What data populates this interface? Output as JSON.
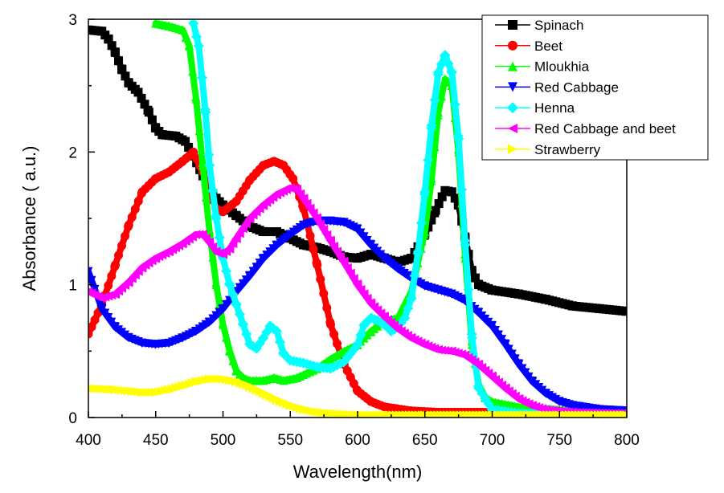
{
  "chart_data": {
    "type": "line",
    "title": "",
    "xlabel": "Wavelength(nm)",
    "ylabel": "Absorbance ( a.u.)",
    "xlim": [
      400,
      800
    ],
    "ylim": [
      0,
      3
    ],
    "xticks": [
      400,
      450,
      500,
      550,
      600,
      650,
      700,
      750,
      800
    ],
    "yticks": [
      0,
      1,
      2,
      3
    ],
    "grid": false,
    "legend_position": "top-right",
    "series": [
      {
        "name": "Spinach",
        "color": "#000000",
        "marker": "square",
        "points": [
          [
            400,
            2.92
          ],
          [
            410,
            2.91
          ],
          [
            415,
            2.85
          ],
          [
            420,
            2.75
          ],
          [
            425,
            2.62
          ],
          [
            430,
            2.52
          ],
          [
            437,
            2.45
          ],
          [
            445,
            2.3
          ],
          [
            450,
            2.18
          ],
          [
            455,
            2.13
          ],
          [
            465,
            2.12
          ],
          [
            472,
            2.08
          ],
          [
            478,
            1.97
          ],
          [
            485,
            1.82
          ],
          [
            490,
            1.72
          ],
          [
            495,
            1.65
          ],
          [
            500,
            1.6
          ],
          [
            510,
            1.52
          ],
          [
            520,
            1.44
          ],
          [
            530,
            1.4
          ],
          [
            540,
            1.4
          ],
          [
            550,
            1.35
          ],
          [
            560,
            1.3
          ],
          [
            570,
            1.28
          ],
          [
            580,
            1.25
          ],
          [
            590,
            1.21
          ],
          [
            600,
            1.2
          ],
          [
            610,
            1.23
          ],
          [
            620,
            1.2
          ],
          [
            630,
            1.17
          ],
          [
            640,
            1.2
          ],
          [
            650,
            1.38
          ],
          [
            658,
            1.56
          ],
          [
            665,
            1.71
          ],
          [
            670,
            1.7
          ],
          [
            675,
            1.6
          ],
          [
            680,
            1.35
          ],
          [
            685,
            1.1
          ],
          [
            690,
            1.0
          ],
          [
            700,
            0.96
          ],
          [
            720,
            0.93
          ],
          [
            740,
            0.89
          ],
          [
            760,
            0.84
          ],
          [
            780,
            0.82
          ],
          [
            800,
            0.8
          ]
        ]
      },
      {
        "name": "Beet",
        "color": "#ff0000",
        "marker": "circle",
        "points": [
          [
            400,
            0.63
          ],
          [
            410,
            0.85
          ],
          [
            420,
            1.15
          ],
          [
            430,
            1.45
          ],
          [
            440,
            1.7
          ],
          [
            450,
            1.8
          ],
          [
            460,
            1.85
          ],
          [
            470,
            1.93
          ],
          [
            478,
            2.0
          ],
          [
            485,
            1.85
          ],
          [
            490,
            1.7
          ],
          [
            495,
            1.57
          ],
          [
            500,
            1.55
          ],
          [
            510,
            1.63
          ],
          [
            520,
            1.79
          ],
          [
            530,
            1.9
          ],
          [
            538,
            1.93
          ],
          [
            545,
            1.9
          ],
          [
            552,
            1.8
          ],
          [
            560,
            1.57
          ],
          [
            570,
            1.15
          ],
          [
            580,
            0.7
          ],
          [
            590,
            0.4
          ],
          [
            600,
            0.2
          ],
          [
            610,
            0.12
          ],
          [
            620,
            0.08
          ],
          [
            640,
            0.05
          ],
          [
            660,
            0.04
          ],
          [
            700,
            0.04
          ],
          [
            750,
            0.04
          ],
          [
            800,
            0.04
          ]
        ]
      },
      {
        "name": "Mloukhia",
        "color": "#00ff00",
        "marker": "triangle-up",
        "points": [
          [
            450,
            2.97
          ],
          [
            460,
            2.95
          ],
          [
            470,
            2.92
          ],
          [
            475,
            2.8
          ],
          [
            480,
            2.4
          ],
          [
            485,
            1.9
          ],
          [
            490,
            1.4
          ],
          [
            495,
            1.0
          ],
          [
            500,
            0.7
          ],
          [
            505,
            0.5
          ],
          [
            510,
            0.35
          ],
          [
            515,
            0.3
          ],
          [
            520,
            0.28
          ],
          [
            530,
            0.28
          ],
          [
            538,
            0.3
          ],
          [
            545,
            0.28
          ],
          [
            555,
            0.3
          ],
          [
            570,
            0.37
          ],
          [
            580,
            0.44
          ],
          [
            590,
            0.5
          ],
          [
            600,
            0.55
          ],
          [
            610,
            0.65
          ],
          [
            620,
            0.73
          ],
          [
            630,
            0.75
          ],
          [
            640,
            0.95
          ],
          [
            650,
            1.4
          ],
          [
            655,
            1.8
          ],
          [
            660,
            2.3
          ],
          [
            665,
            2.55
          ],
          [
            670,
            2.5
          ],
          [
            675,
            2.0
          ],
          [
            680,
            1.2
          ],
          [
            685,
            0.55
          ],
          [
            690,
            0.25
          ],
          [
            695,
            0.15
          ],
          [
            700,
            0.12
          ],
          [
            720,
            0.08
          ],
          [
            750,
            0.06
          ],
          [
            780,
            0.05
          ],
          [
            800,
            0.04
          ]
        ]
      },
      {
        "name": "Red Cabbage",
        "color": "#0000ff",
        "marker": "triangle-down",
        "points": [
          [
            400,
            1.1
          ],
          [
            410,
            0.82
          ],
          [
            420,
            0.68
          ],
          [
            430,
            0.6
          ],
          [
            440,
            0.56
          ],
          [
            450,
            0.55
          ],
          [
            460,
            0.56
          ],
          [
            470,
            0.6
          ],
          [
            480,
            0.65
          ],
          [
            490,
            0.72
          ],
          [
            500,
            0.82
          ],
          [
            510,
            0.95
          ],
          [
            520,
            1.07
          ],
          [
            530,
            1.2
          ],
          [
            540,
            1.3
          ],
          [
            550,
            1.38
          ],
          [
            560,
            1.45
          ],
          [
            570,
            1.48
          ],
          [
            580,
            1.48
          ],
          [
            590,
            1.47
          ],
          [
            600,
            1.42
          ],
          [
            610,
            1.3
          ],
          [
            620,
            1.2
          ],
          [
            630,
            1.12
          ],
          [
            640,
            1.05
          ],
          [
            650,
            0.99
          ],
          [
            660,
            0.96
          ],
          [
            670,
            0.93
          ],
          [
            680,
            0.88
          ],
          [
            690,
            0.79
          ],
          [
            700,
            0.69
          ],
          [
            710,
            0.55
          ],
          [
            720,
            0.4
          ],
          [
            730,
            0.27
          ],
          [
            740,
            0.18
          ],
          [
            750,
            0.12
          ],
          [
            760,
            0.09
          ],
          [
            780,
            0.06
          ],
          [
            800,
            0.05
          ]
        ]
      },
      {
        "name": "Henna",
        "color": "#00ffff",
        "marker": "diamond",
        "points": [
          [
            478,
            2.97
          ],
          [
            482,
            2.8
          ],
          [
            487,
            2.3
          ],
          [
            490,
            1.9
          ],
          [
            495,
            1.5
          ],
          [
            500,
            1.2
          ],
          [
            505,
            1.0
          ],
          [
            510,
            0.85
          ],
          [
            515,
            0.7
          ],
          [
            520,
            0.55
          ],
          [
            525,
            0.52
          ],
          [
            530,
            0.6
          ],
          [
            535,
            0.69
          ],
          [
            540,
            0.65
          ],
          [
            545,
            0.48
          ],
          [
            550,
            0.43
          ],
          [
            560,
            0.41
          ],
          [
            570,
            0.38
          ],
          [
            580,
            0.37
          ],
          [
            590,
            0.42
          ],
          [
            600,
            0.55
          ],
          [
            605,
            0.7
          ],
          [
            610,
            0.75
          ],
          [
            615,
            0.73
          ],
          [
            620,
            0.7
          ],
          [
            625,
            0.65
          ],
          [
            630,
            0.68
          ],
          [
            635,
            0.75
          ],
          [
            640,
            0.9
          ],
          [
            645,
            1.25
          ],
          [
            650,
            1.7
          ],
          [
            655,
            2.2
          ],
          [
            660,
            2.6
          ],
          [
            665,
            2.73
          ],
          [
            670,
            2.6
          ],
          [
            675,
            2.1
          ],
          [
            680,
            1.3
          ],
          [
            685,
            0.6
          ],
          [
            690,
            0.22
          ],
          [
            700,
            0.06
          ],
          [
            720,
            0.03
          ],
          [
            760,
            0.02
          ],
          [
            800,
            0.02
          ]
        ]
      },
      {
        "name": "Red Cabbage and beet",
        "color": "#ff00ff",
        "marker": "triangle-left",
        "points": [
          [
            400,
            0.95
          ],
          [
            410,
            0.9
          ],
          [
            420,
            0.93
          ],
          [
            430,
            1.02
          ],
          [
            440,
            1.13
          ],
          [
            450,
            1.2
          ],
          [
            460,
            1.25
          ],
          [
            470,
            1.31
          ],
          [
            480,
            1.38
          ],
          [
            485,
            1.38
          ],
          [
            490,
            1.32
          ],
          [
            495,
            1.25
          ],
          [
            500,
            1.23
          ],
          [
            505,
            1.27
          ],
          [
            510,
            1.35
          ],
          [
            520,
            1.5
          ],
          [
            530,
            1.6
          ],
          [
            540,
            1.68
          ],
          [
            550,
            1.73
          ],
          [
            555,
            1.72
          ],
          [
            560,
            1.65
          ],
          [
            570,
            1.5
          ],
          [
            580,
            1.33
          ],
          [
            590,
            1.17
          ],
          [
            600,
            1.0
          ],
          [
            610,
            0.86
          ],
          [
            620,
            0.76
          ],
          [
            630,
            0.67
          ],
          [
            640,
            0.6
          ],
          [
            650,
            0.55
          ],
          [
            660,
            0.51
          ],
          [
            670,
            0.5
          ],
          [
            680,
            0.47
          ],
          [
            690,
            0.4
          ],
          [
            700,
            0.31
          ],
          [
            710,
            0.22
          ],
          [
            720,
            0.14
          ],
          [
            730,
            0.09
          ],
          [
            740,
            0.06
          ],
          [
            760,
            0.04
          ],
          [
            800,
            0.03
          ]
        ]
      },
      {
        "name": "Strawberry",
        "color": "#ffff00",
        "marker": "triangle-right",
        "points": [
          [
            400,
            0.22
          ],
          [
            420,
            0.21
          ],
          [
            440,
            0.19
          ],
          [
            450,
            0.19
          ],
          [
            460,
            0.21
          ],
          [
            470,
            0.24
          ],
          [
            480,
            0.27
          ],
          [
            490,
            0.29
          ],
          [
            500,
            0.29
          ],
          [
            510,
            0.27
          ],
          [
            520,
            0.23
          ],
          [
            530,
            0.18
          ],
          [
            540,
            0.13
          ],
          [
            550,
            0.09
          ],
          [
            560,
            0.06
          ],
          [
            570,
            0.04
          ],
          [
            580,
            0.03
          ],
          [
            600,
            0.02
          ],
          [
            650,
            0.02
          ],
          [
            700,
            0.02
          ],
          [
            750,
            0.02
          ],
          [
            800,
            0.02
          ]
        ]
      }
    ]
  }
}
